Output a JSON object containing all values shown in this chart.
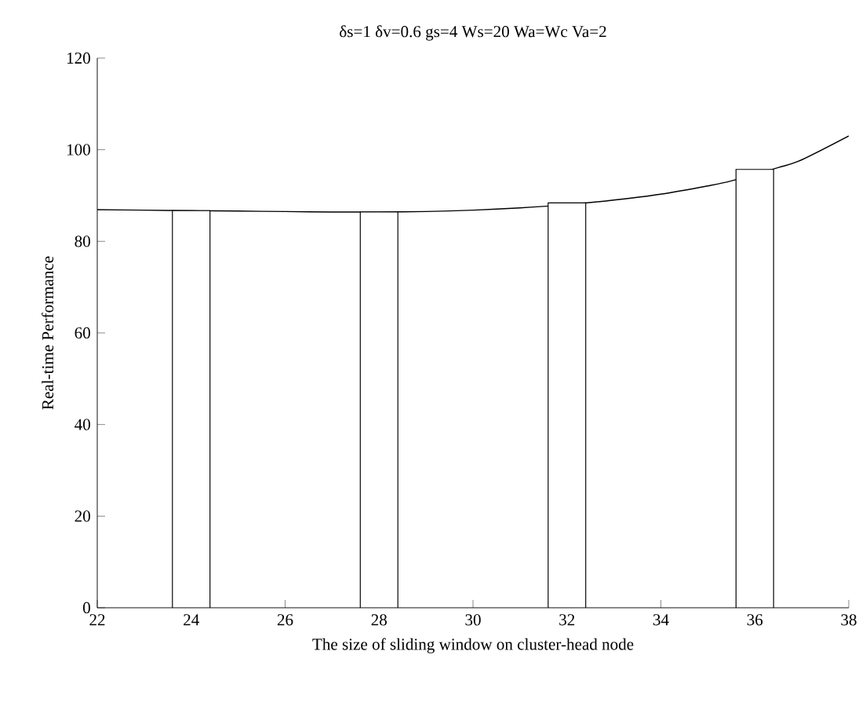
{
  "chart_data": {
    "type": "bar",
    "title": "δs=1 δv=0.6 gs=4 Ws=20 Wa=Wc Va=2",
    "xlabel": "The size of sliding window on cluster-head node",
    "ylabel": "Real-time Performance",
    "x": [
      24,
      28,
      32,
      36
    ],
    "series": [
      {
        "color": "#ffffff",
        "values": [
          86.7,
          86.4,
          88.4,
          95.7
        ]
      },
      {
        "type": "line",
        "color": "#000000",
        "x": [
          22,
          23,
          24,
          25,
          26,
          27,
          28,
          29,
          30,
          31,
          32,
          33,
          34,
          35,
          35.5,
          36.5,
          37,
          38
        ],
        "values": [
          86.9,
          86.8,
          86.7,
          86.6,
          86.5,
          86.4,
          86.4,
          86.5,
          86.8,
          87.3,
          88.0,
          89.0,
          90.3,
          92.1,
          93.2,
          96.1,
          97.8,
          103.0
        ]
      }
    ],
    "xlim": [
      22,
      38
    ],
    "ylim": [
      0,
      120
    ],
    "xticks": [
      22,
      24,
      26,
      28,
      30,
      32,
      34,
      36,
      38
    ],
    "yticks": [
      0,
      20,
      40,
      60,
      80,
      100,
      120
    ],
    "grid": false
  }
}
